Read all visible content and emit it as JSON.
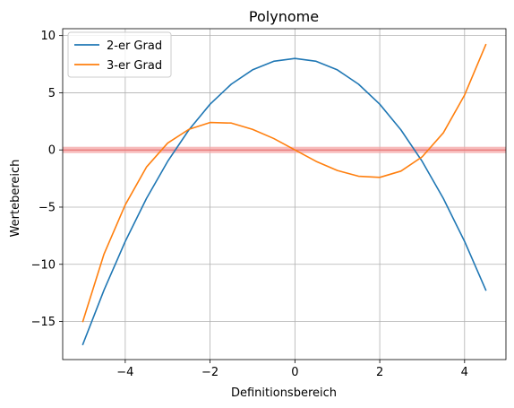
{
  "chart_data": {
    "type": "line",
    "title": "Polynome",
    "xlabel": "Definitionsbereich",
    "ylabel": "Wertebereich",
    "xlim": [
      -5.475,
      4.975
    ],
    "ylim": [
      -18.33,
      10.6
    ],
    "xticks": [
      -4,
      -2,
      0,
      2,
      4
    ],
    "xtick_labels": [
      "−4",
      "−2",
      "0",
      "2",
      "4"
    ],
    "yticks": [
      -15,
      -10,
      -5,
      0,
      5,
      10
    ],
    "ytick_labels": [
      "−15",
      "−10",
      "−5",
      "0",
      "5",
      "10"
    ],
    "grid": true,
    "legend_position": "upper-left",
    "reference_line": {
      "y": 0,
      "color": "#f4a6a6"
    },
    "x": [
      -5,
      -4.5,
      -4,
      -3.5,
      -3,
      -2.5,
      -2,
      -1.5,
      -1,
      -0.5,
      0,
      0.5,
      1,
      1.5,
      2,
      2.5,
      3,
      3.5,
      4,
      4.5
    ],
    "series": [
      {
        "name": "2-er Grad",
        "color": "#1f77b4",
        "values": [
          -17,
          -12.25,
          -8,
          -4.25,
          -1,
          1.75,
          4,
          5.75,
          7,
          7.75,
          8,
          7.75,
          7,
          5.75,
          4,
          1.75,
          -1,
          -4.25,
          -8,
          -12.25
        ]
      },
      {
        "name": "3-er Grad",
        "color": "#ff7f0e",
        "values": [
          -15,
          -9.1,
          -4.8,
          -1.5,
          0.6,
          1.8,
          2.4,
          2.35,
          1.8,
          1.0,
          0,
          -1.0,
          -1.8,
          -2.3,
          -2.4,
          -1.85,
          -0.6,
          1.5,
          4.8,
          9.2
        ]
      }
    ]
  }
}
